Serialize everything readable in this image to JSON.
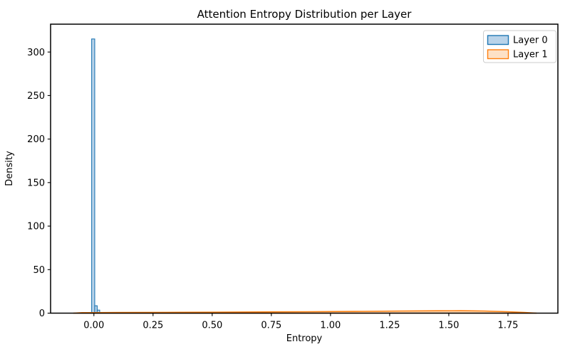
{
  "chart_data": {
    "type": "bar",
    "subtype": "overlaid-distribution-histograms",
    "title": "Attention Entropy Distribution per Layer",
    "xlabel": "Entropy",
    "ylabel": "Density",
    "xlim": [
      -0.183,
      1.961
    ],
    "ylim": [
      0,
      332
    ],
    "grid": false,
    "legend_position": "upper right",
    "x_ticks": [
      {
        "value": 0.0,
        "label": "0.00"
      },
      {
        "value": 0.25,
        "label": "0.25"
      },
      {
        "value": 0.5,
        "label": "0.50"
      },
      {
        "value": 0.75,
        "label": "0.75"
      },
      {
        "value": 1.0,
        "label": "1.00"
      },
      {
        "value": 1.25,
        "label": "1.25"
      },
      {
        "value": 1.5,
        "label": "1.50"
      },
      {
        "value": 1.75,
        "label": "1.75"
      }
    ],
    "y_ticks": [
      {
        "value": 0,
        "label": "0"
      },
      {
        "value": 50,
        "label": "50"
      },
      {
        "value": 100,
        "label": "100"
      },
      {
        "value": 150,
        "label": "150"
      },
      {
        "value": 200,
        "label": "200"
      },
      {
        "value": 250,
        "label": "250"
      },
      {
        "value": 300,
        "label": "300"
      }
    ],
    "series": [
      {
        "name": "Layer 0",
        "render": "bars",
        "color_edge": "#1f77b4",
        "color_fill": "#b9d3e9",
        "bars": [
          {
            "x0": -0.0095,
            "x1": 0.0035,
            "density": 315
          },
          {
            "x0": 0.0035,
            "x1": 0.014,
            "density": 8.5
          },
          {
            "x0": 0.014,
            "x1": 0.0245,
            "density": 3.5
          }
        ]
      },
      {
        "name": "Layer 1",
        "render": "curve",
        "color_edge": "#ff7f0e",
        "color_fill": "#fde1c6",
        "points": [
          [
            -0.086,
            0.0
          ],
          [
            -0.05,
            0.55
          ],
          [
            0.1,
            0.7
          ],
          [
            0.3,
            0.9
          ],
          [
            0.5,
            1.1
          ],
          [
            0.7,
            1.35
          ],
          [
            0.9,
            1.6
          ],
          [
            1.1,
            2.0
          ],
          [
            1.3,
            2.45
          ],
          [
            1.45,
            2.7
          ],
          [
            1.55,
            2.75
          ],
          [
            1.65,
            2.45
          ],
          [
            1.75,
            1.6
          ],
          [
            1.82,
            0.8
          ],
          [
            1.87,
            0.0
          ]
        ]
      }
    ]
  }
}
